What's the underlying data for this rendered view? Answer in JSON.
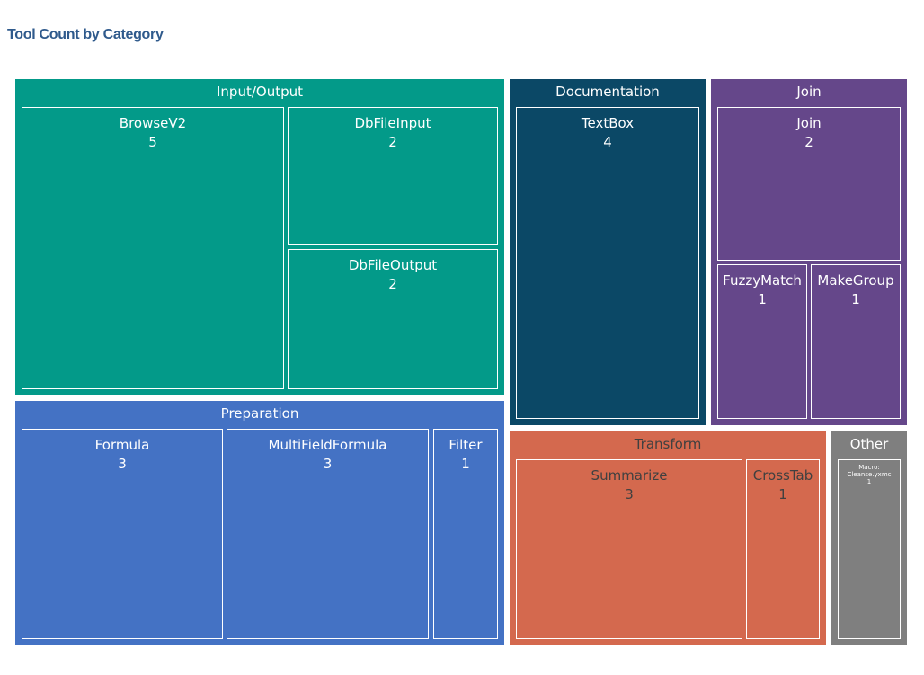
{
  "chart_data": {
    "type": "treemap",
    "title": "Tool Count by Category",
    "categories": [
      {
        "name": "Input/Output",
        "color": "#039a89",
        "text_color": "#ffffff",
        "children": [
          {
            "name": "BrowseV2",
            "value": 5
          },
          {
            "name": "DbFileInput",
            "value": 2
          },
          {
            "name": "DbFileOutput",
            "value": 2
          }
        ]
      },
      {
        "name": "Documentation",
        "color": "#0b4866",
        "text_color": "#ffffff",
        "children": [
          {
            "name": "TextBox",
            "value": 4
          }
        ]
      },
      {
        "name": "Join",
        "color": "#65478a",
        "text_color": "#ffffff",
        "children": [
          {
            "name": "Join",
            "value": 2
          },
          {
            "name": "FuzzyMatch",
            "value": 1
          },
          {
            "name": "MakeGroup",
            "value": 1
          }
        ]
      },
      {
        "name": "Preparation",
        "color": "#4472c4",
        "text_color": "#ffffff",
        "children": [
          {
            "name": "Formula",
            "value": 3
          },
          {
            "name": "MultiFieldFormula",
            "value": 3
          },
          {
            "name": "Filter",
            "value": 1
          }
        ]
      },
      {
        "name": "Transform",
        "color": "#d4694e",
        "text_color": "#404040",
        "children": [
          {
            "name": "Summarize",
            "value": 3
          },
          {
            "name": "CrossTab",
            "value": 1
          }
        ]
      },
      {
        "name": "Other",
        "color": "#7f7f7f",
        "text_color": "#ffffff",
        "children": [
          {
            "name": "Macro: Cleanse.yxmc",
            "value": 1
          }
        ]
      }
    ]
  }
}
